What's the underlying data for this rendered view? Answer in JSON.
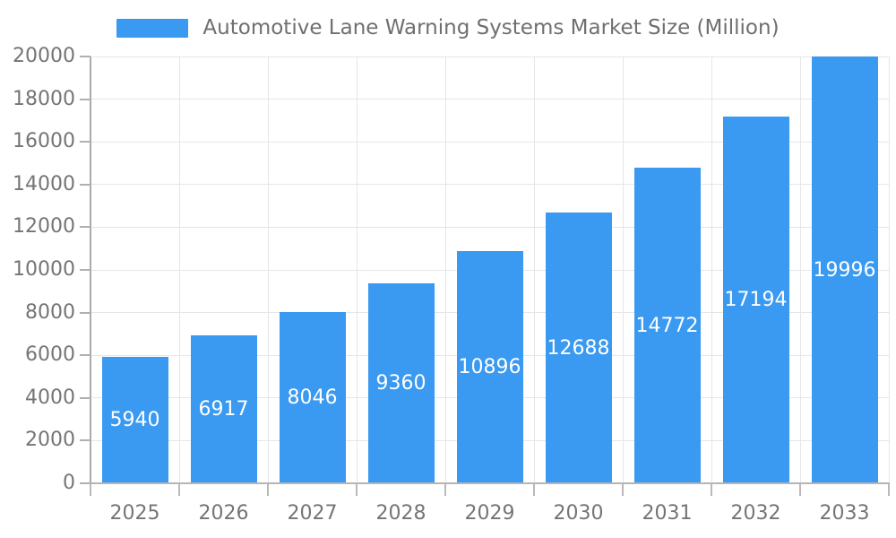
{
  "legend": {
    "swatch_color": "#3A99F0",
    "label": "Automotive Lane Warning Systems Market Size (Million)"
  },
  "chart_data": {
    "type": "bar",
    "title": "Automotive Lane Warning Systems Market Size (Million)",
    "series_name": "Automotive Lane Warning Systems Market Size (Million)",
    "categories": [
      "2025",
      "2026",
      "2027",
      "2028",
      "2029",
      "2030",
      "2031",
      "2032",
      "2033"
    ],
    "values": [
      5940,
      6917,
      8046,
      9360,
      10896,
      12688,
      14772,
      17194,
      19996
    ],
    "xlabel": "",
    "ylabel": "",
    "ylim": [
      0,
      20000
    ],
    "ytick_step": 2000,
    "yticks": [
      0,
      2000,
      4000,
      6000,
      8000,
      10000,
      12000,
      14000,
      16000,
      18000,
      20000
    ],
    "grid": true,
    "legend_position": "top-center",
    "bar_color": "#3A99F0",
    "value_label_color": "#ffffff",
    "axis_text_color": "#757575"
  }
}
